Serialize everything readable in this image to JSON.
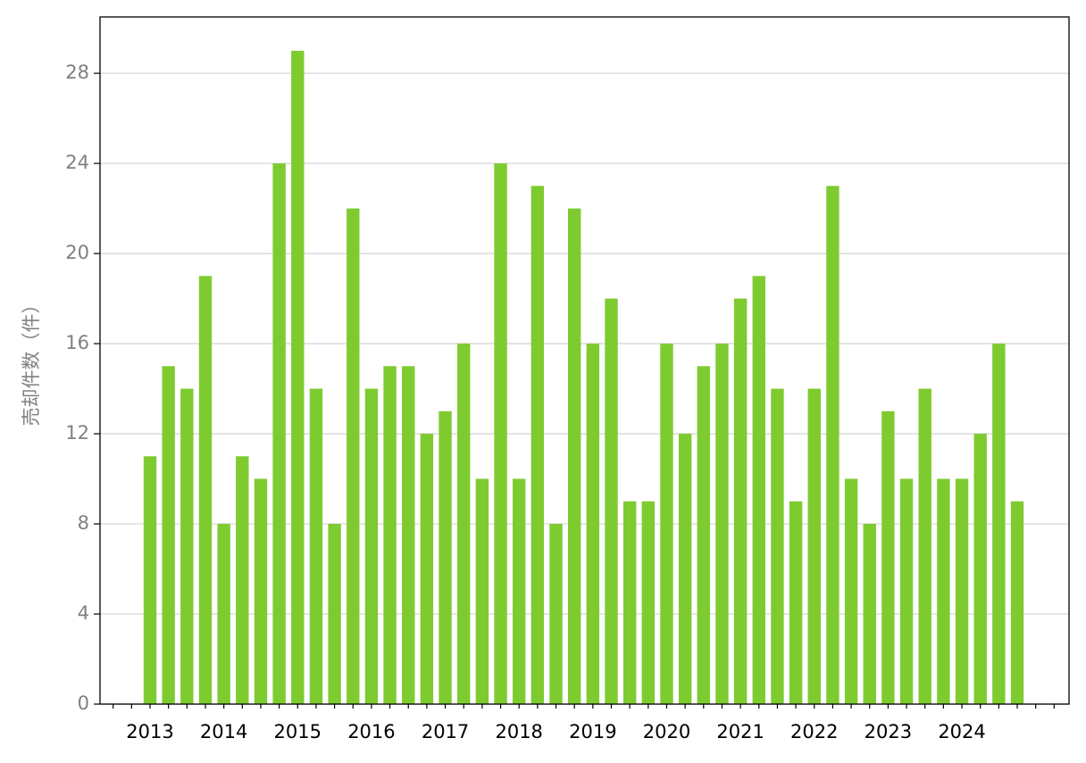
{
  "chart_data": {
    "type": "bar",
    "y_label": "売却件数（件）",
    "categories": [
      "2013",
      null,
      null,
      null,
      "2014",
      null,
      null,
      null,
      "2015",
      null,
      null,
      null,
      "2016",
      null,
      null,
      null,
      "2017",
      null,
      null,
      null,
      "2018",
      null,
      null,
      null,
      "2019",
      null,
      null,
      null,
      "2020",
      null,
      null,
      null,
      "2021",
      null,
      null,
      null,
      "2022",
      null,
      null,
      null,
      "2023",
      null,
      null,
      null,
      "2024",
      null,
      null,
      null
    ],
    "values": [
      11,
      15,
      14,
      19,
      8,
      11,
      10,
      24,
      29,
      14,
      8,
      22,
      14,
      15,
      15,
      12,
      13,
      16,
      10,
      24,
      10,
      23,
      8,
      22,
      16,
      18,
      9,
      9,
      16,
      12,
      15,
      16,
      18,
      19,
      14,
      9,
      14,
      23,
      10,
      8,
      13,
      10,
      14,
      10,
      10,
      12,
      16,
      9
    ],
    "color": "#7ecb30",
    "ylim": [
      0,
      30.5
    ],
    "yticks": [
      0,
      4,
      8,
      12,
      16,
      20,
      24,
      28
    ],
    "grid": true
  }
}
